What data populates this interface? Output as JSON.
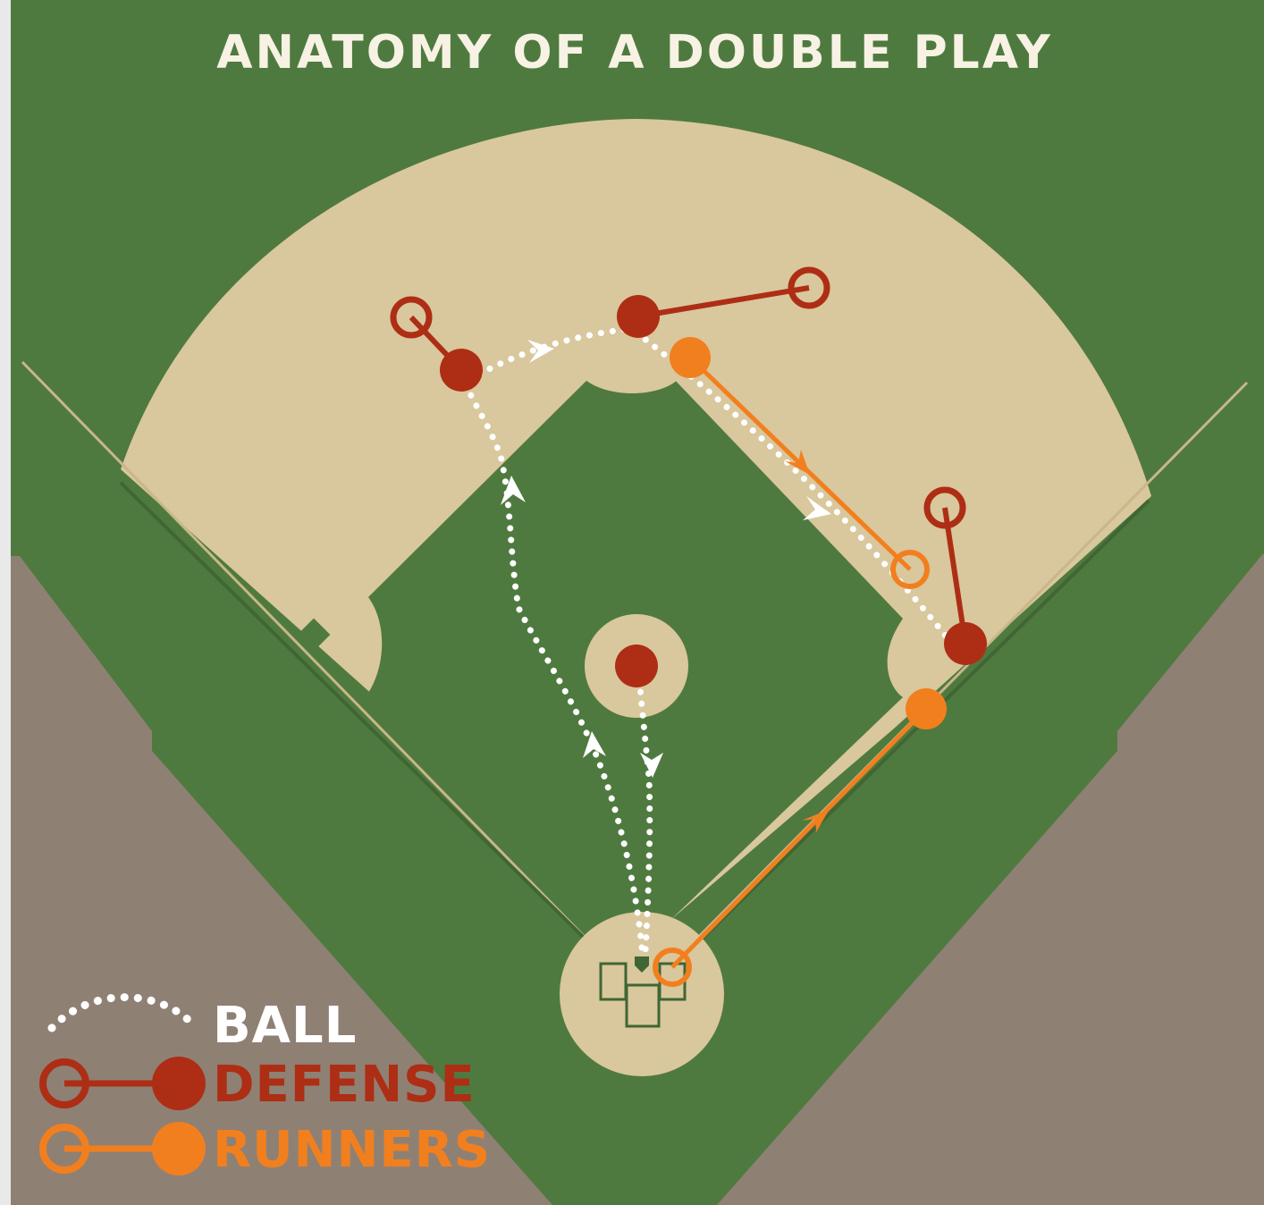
{
  "title": "ANATOMY OF A DOUBLE PLAY",
  "legend": {
    "ball_label": "BALL",
    "defense_label": "DEFENSE",
    "runners_label": "RUNNERS"
  },
  "colors": {
    "grass": "#4f7a3f",
    "infield_dirt": "#d9c79d",
    "outer_dirt": "#8f8074",
    "field_edge": "#c9b68a",
    "defense": "#ad2e14",
    "runners": "#f27f1e",
    "ball": "#ffffff",
    "title_text": "#f7f2e4"
  }
}
